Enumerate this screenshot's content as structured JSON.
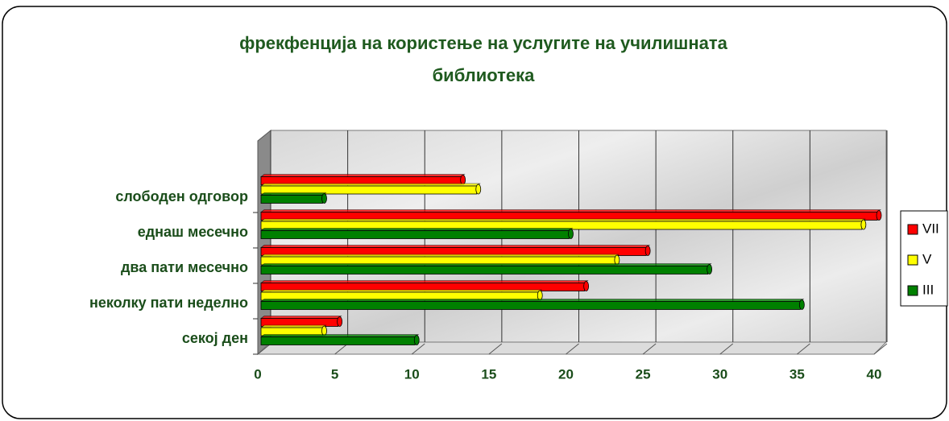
{
  "chart_data": {
    "type": "bar3d_horizontal",
    "title_lines": [
      "фрекфенција на користење на услугите на училишната",
      "библиотека"
    ],
    "categories": [
      "секој ден",
      "неколку пати неделно",
      "два пати месечно",
      "еднаш месечно",
      "слободен одговор"
    ],
    "series": [
      {
        "name": "VII",
        "color": "#ff0000",
        "values": [
          5,
          21,
          25,
          40,
          13
        ]
      },
      {
        "name": "V",
        "color": "#ffff00",
        "values": [
          4,
          18,
          23,
          39,
          14
        ]
      },
      {
        "name": "III",
        "color": "#008000",
        "values": [
          10,
          35,
          29,
          20,
          4
        ]
      }
    ],
    "xlim": [
      0,
      40
    ],
    "xticks": [
      0,
      5,
      10,
      15,
      20,
      25,
      30,
      35,
      40
    ],
    "grid": true,
    "legend": "right"
  }
}
